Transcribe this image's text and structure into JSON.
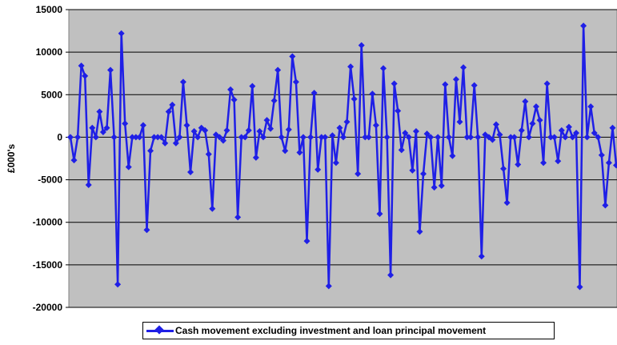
{
  "chart_data": {
    "type": "line",
    "title": "",
    "xlabel": "",
    "ylabel": "£000's",
    "ylim": [
      -20000,
      15000
    ],
    "ytick_step": 5000,
    "grid": true,
    "plot_background": "#c0c0c0",
    "series_color": "#1f1fe6",
    "legend_position": "bottom",
    "series": [
      {
        "name": "Cash movement excluding investment and loan principal movement",
        "values": [
          0,
          -2700,
          0,
          8400,
          7200,
          -5600,
          1100,
          0,
          3000,
          600,
          1100,
          7900,
          0,
          -17300,
          12200,
          1600,
          -3500,
          0,
          0,
          0,
          1400,
          -10900,
          -1600,
          0,
          0,
          0,
          -700,
          3000,
          3800,
          -700,
          0,
          6500,
          1400,
          -4100,
          700,
          0,
          1100,
          800,
          -2000,
          -8400,
          300,
          0,
          -400,
          800,
          5600,
          4400,
          -9400,
          0,
          0,
          800,
          6000,
          -2400,
          700,
          0,
          2000,
          1000,
          4300,
          7900,
          0,
          -1600,
          900,
          9500,
          6500,
          -1800,
          0,
          -12200,
          0,
          5200,
          -3800,
          0,
          0,
          -17500,
          200,
          -3000,
          1100,
          0,
          1800,
          8300,
          4500,
          -4300,
          10800,
          0,
          0,
          5100,
          1400,
          -9000,
          8100,
          0,
          -16200,
          6300,
          3100,
          -1500,
          500,
          0,
          -3900,
          700,
          -11100,
          -4300,
          400,
          0,
          -5900,
          0,
          -5700,
          6200,
          0,
          -2200,
          6800,
          1800,
          8200,
          0,
          0,
          6100,
          0,
          -14000,
          300,
          0,
          -300,
          1500,
          300,
          -3700,
          -7700,
          0,
          0,
          -3200,
          800,
          4200,
          0,
          1600,
          3600,
          2000,
          -3000,
          6300,
          0,
          0,
          -2800,
          800,
          0,
          1200,
          0,
          500,
          -17600,
          13100,
          0,
          3600,
          500,
          0,
          -2100,
          -8000,
          -3000,
          1100,
          -3300
        ]
      }
    ]
  },
  "y_ticks": [
    "15000",
    "10000",
    "5000",
    "0",
    "-5000",
    "-10000",
    "-15000",
    "-20000"
  ],
  "legend": {
    "label": "Cash movement excluding investment and loan principal movement"
  }
}
